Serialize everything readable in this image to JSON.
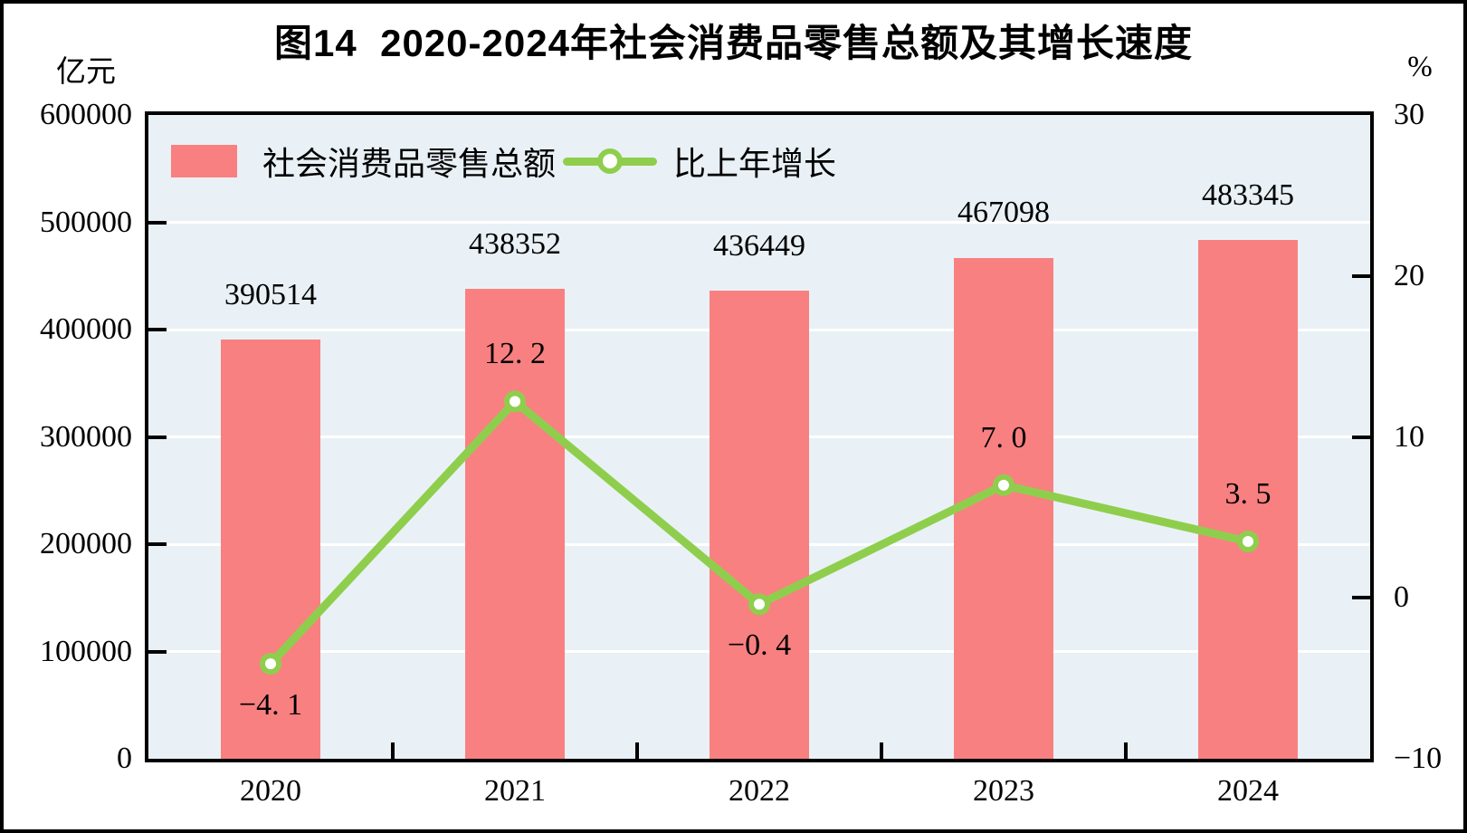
{
  "figure": {
    "title": "图14  2020-2024年社会消费品零售总额及其增长速度",
    "unit_left": "亿元",
    "unit_right": "%"
  },
  "legend": [
    {
      "label": "社会消费品零售总额",
      "type": "bar"
    },
    {
      "label": "比上年增长",
      "type": "line"
    }
  ],
  "colors": {
    "bar": "#f98080",
    "line": "#8fce4d",
    "marker_fill": "#ffffff",
    "plot_background": "#e9f1f6",
    "gridline": "#ffffff",
    "axis": "#000000",
    "text": "#000000"
  },
  "chart_data": {
    "type": "bar+line combo",
    "title": "图14  2020-2024年社会消费品零售总额及其增长速度",
    "categories": [
      "2020",
      "2021",
      "2022",
      "2023",
      "2024"
    ],
    "series": [
      {
        "name": "社会消费品零售总额",
        "type": "bar",
        "axis": "left",
        "unit": "亿元",
        "values": [
          390514,
          438352,
          436449,
          467098,
          483345
        ],
        "labels": [
          "390514",
          "438352",
          "436449",
          "467098",
          "483345"
        ]
      },
      {
        "name": "比上年增长",
        "type": "line",
        "axis": "right",
        "unit": "%",
        "values": [
          -4.1,
          12.2,
          -0.4,
          7.0,
          3.5
        ],
        "labels": [
          "−4. 1",
          "12. 2",
          "−0. 4",
          "7. 0",
          "3. 5"
        ],
        "label_side": [
          "below",
          "above",
          "below",
          "above",
          "above"
        ]
      }
    ],
    "left_axis": {
      "title": "亿元",
      "min": 0,
      "max": 600000,
      "tick_step": 100000,
      "tick_labels": [
        "600000",
        "500000",
        "400000",
        "300000",
        "200000",
        "100000",
        "0"
      ]
    },
    "right_axis": {
      "title": "%",
      "min": -10,
      "max": 30,
      "tick_step": 10,
      "tick_labels": [
        "30",
        "20",
        "10",
        "0",
        "−10"
      ]
    },
    "grid": "horizontal white lines at left-axis 100000 steps",
    "legend_position": "top-left inside plot"
  }
}
